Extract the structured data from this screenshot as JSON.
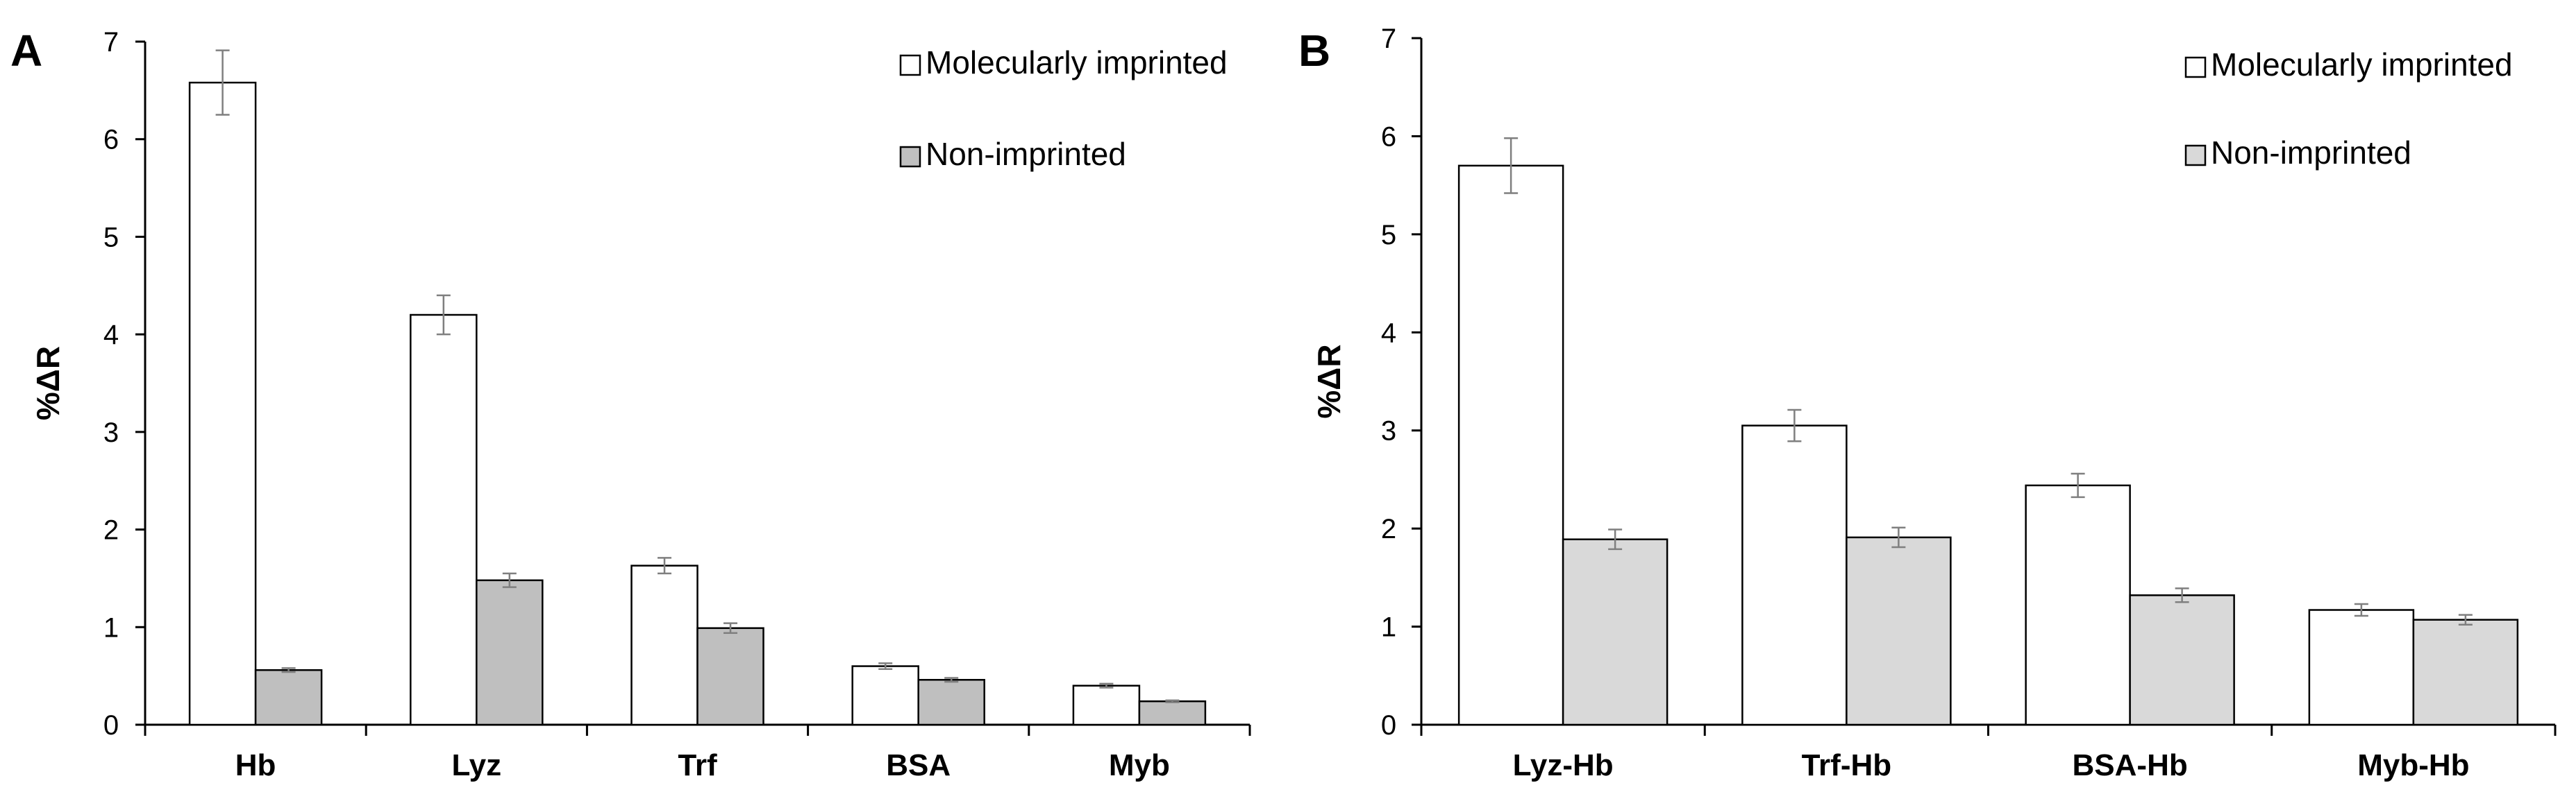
{
  "colors": {
    "mip_fill": "#ffffff",
    "nip_fill_A": "#bfbfbf",
    "nip_fill_B": "#d9d9d9",
    "bar_stroke": "#000000",
    "error_bar": "#7f7f7f",
    "axis": "#000000"
  },
  "chart_data": [
    {
      "type": "bar",
      "panel_label": "A",
      "ylabel": "%ΔR",
      "xlabel": "",
      "ylim": [
        0,
        7
      ],
      "yticks": [
        0,
        1,
        2,
        3,
        4,
        5,
        6,
        7
      ],
      "grid": false,
      "legend_position": "top-right",
      "categories": [
        "Hb",
        "Lyz",
        "Trf",
        "BSA",
        "Myb"
      ],
      "series": [
        {
          "name": "Molecularly imprinted",
          "values": [
            6.58,
            4.2,
            1.63,
            0.6,
            0.4
          ],
          "errors": [
            0.33,
            0.2,
            0.08,
            0.03,
            0.02
          ]
        },
        {
          "name": "Non-imprinted",
          "values": [
            0.56,
            1.48,
            0.99,
            0.46,
            0.24
          ],
          "errors": [
            0.02,
            0.07,
            0.05,
            0.02,
            0.01
          ]
        }
      ]
    },
    {
      "type": "bar",
      "panel_label": "B",
      "ylabel": "%ΔR",
      "xlabel": "",
      "ylim": [
        0,
        7
      ],
      "yticks": [
        0,
        1,
        2,
        3,
        4,
        5,
        6,
        7
      ],
      "grid": false,
      "legend_position": "top-right",
      "categories": [
        "Lyz-Hb",
        "Trf-Hb",
        "BSA-Hb",
        "Myb-Hb"
      ],
      "series": [
        {
          "name": "Molecularly imprinted",
          "values": [
            5.7,
            3.05,
            2.44,
            1.17
          ],
          "errors": [
            0.28,
            0.16,
            0.12,
            0.06
          ]
        },
        {
          "name": "Non-imprinted",
          "values": [
            1.89,
            1.91,
            1.32,
            1.07
          ],
          "errors": [
            0.1,
            0.1,
            0.07,
            0.05
          ]
        }
      ]
    }
  ]
}
